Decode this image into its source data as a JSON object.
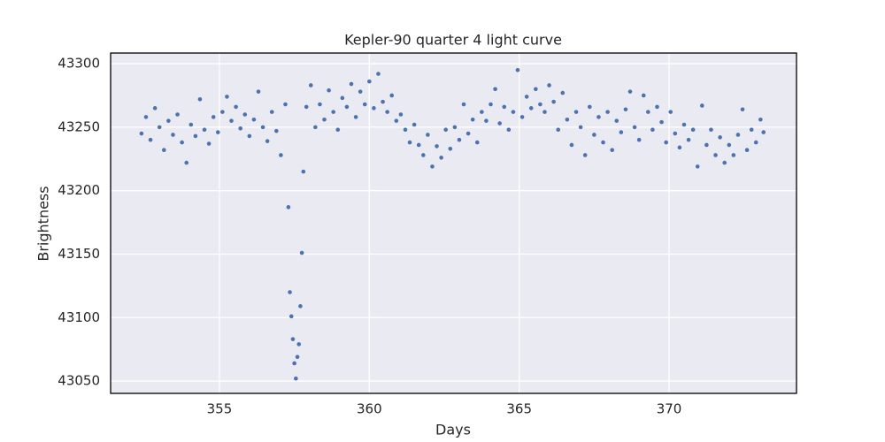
{
  "chart_data": {
    "type": "scatter",
    "title": "Kepler-90 quarter 4 light curve",
    "x_label": "Days",
    "y_label": "Brightness",
    "color": "#4c72b0",
    "grid": true,
    "xlim": [
      351.37,
      374.25
    ],
    "ylim": [
      43040.3,
      43308.4
    ],
    "xticks": [
      355,
      360,
      365,
      370
    ],
    "yticks": [
      43050,
      43100,
      43150,
      43200,
      43250,
      43300
    ],
    "x": [
      352.4,
      352.55,
      352.7,
      352.85,
      353.0,
      353.15,
      353.3,
      353.45,
      353.6,
      353.75,
      353.9,
      354.05,
      354.2,
      354.35,
      354.5,
      354.65,
      354.8,
      354.95,
      355.1,
      355.25,
      355.4,
      355.55,
      355.7,
      355.85,
      356.0,
      356.15,
      356.3,
      356.45,
      356.6,
      356.75,
      356.9,
      357.05,
      357.2,
      357.3,
      357.35,
      357.4,
      357.45,
      357.5,
      357.55,
      357.6,
      357.65,
      357.7,
      357.75,
      357.8,
      357.9,
      358.05,
      358.2,
      358.35,
      358.5,
      358.65,
      358.8,
      358.95,
      359.1,
      359.25,
      359.4,
      359.55,
      359.7,
      359.85,
      360.0,
      360.15,
      360.3,
      360.45,
      360.6,
      360.75,
      360.9,
      361.05,
      361.2,
      361.35,
      361.5,
      361.65,
      361.8,
      361.95,
      362.1,
      362.25,
      362.4,
      362.55,
      362.7,
      362.85,
      363.0,
      363.15,
      363.3,
      363.45,
      363.6,
      363.75,
      363.9,
      364.05,
      364.2,
      364.35,
      364.5,
      364.65,
      364.8,
      364.95,
      365.1,
      365.25,
      365.4,
      365.55,
      365.7,
      365.85,
      366.0,
      366.15,
      366.3,
      366.45,
      366.6,
      366.75,
      366.9,
      367.05,
      367.2,
      367.35,
      367.5,
      367.65,
      367.8,
      367.95,
      368.1,
      368.25,
      368.4,
      368.55,
      368.7,
      368.85,
      369.0,
      369.15,
      369.3,
      369.45,
      369.6,
      369.75,
      369.9,
      370.05,
      370.2,
      370.35,
      370.5,
      370.65,
      370.8,
      370.95,
      371.1,
      371.25,
      371.4,
      371.55,
      371.7,
      371.85,
      372.0,
      372.15,
      372.3,
      372.45,
      372.6,
      372.75,
      372.9,
      373.05,
      373.15
    ],
    "y": [
      43245,
      43258,
      43240,
      43265,
      43250,
      43232,
      43255,
      43244,
      43260,
      43238,
      43222,
      43252,
      43243,
      43272,
      43248,
      43237,
      43258,
      43246,
      43262,
      43274,
      43255,
      43266,
      43249,
      43260,
      43243,
      43256,
      43278,
      43250,
      43239,
      43262,
      43247,
      43228,
      43268,
      43187,
      43120,
      43101,
      43083,
      43064,
      43052,
      43069,
      43079,
      43109,
      43151,
      43215,
      43266,
      43283,
      43250,
      43268,
      43256,
      43279,
      43262,
      43248,
      43273,
      43266,
      43284,
      43258,
      43278,
      43268,
      43286,
      43265,
      43292,
      43270,
      43262,
      43275,
      43255,
      43260,
      43248,
      43238,
      43252,
      43236,
      43228,
      43244,
      43219,
      43235,
      43226,
      43248,
      43233,
      43250,
      43240,
      43268,
      43245,
      43256,
      43238,
      43262,
      43255,
      43268,
      43280,
      43253,
      43266,
      43248,
      43262,
      43295,
      43258,
      43274,
      43265,
      43280,
      43268,
      43262,
      43283,
      43270,
      43248,
      43277,
      43256,
      43236,
      43262,
      43250,
      43228,
      43266,
      43244,
      43258,
      43238,
      43262,
      43232,
      43255,
      43246,
      43264,
      43278,
      43250,
      43240,
      43275,
      43262,
      43248,
      43266,
      43254,
      43238,
      43262,
      43245,
      43234,
      43252,
      43240,
      43248,
      43219,
      43267,
      43236,
      43248,
      43228,
      43242,
      43222,
      43236,
      43228,
      43244,
      43264,
      43232,
      43248,
      43238,
      43256,
      43246
    ]
  }
}
